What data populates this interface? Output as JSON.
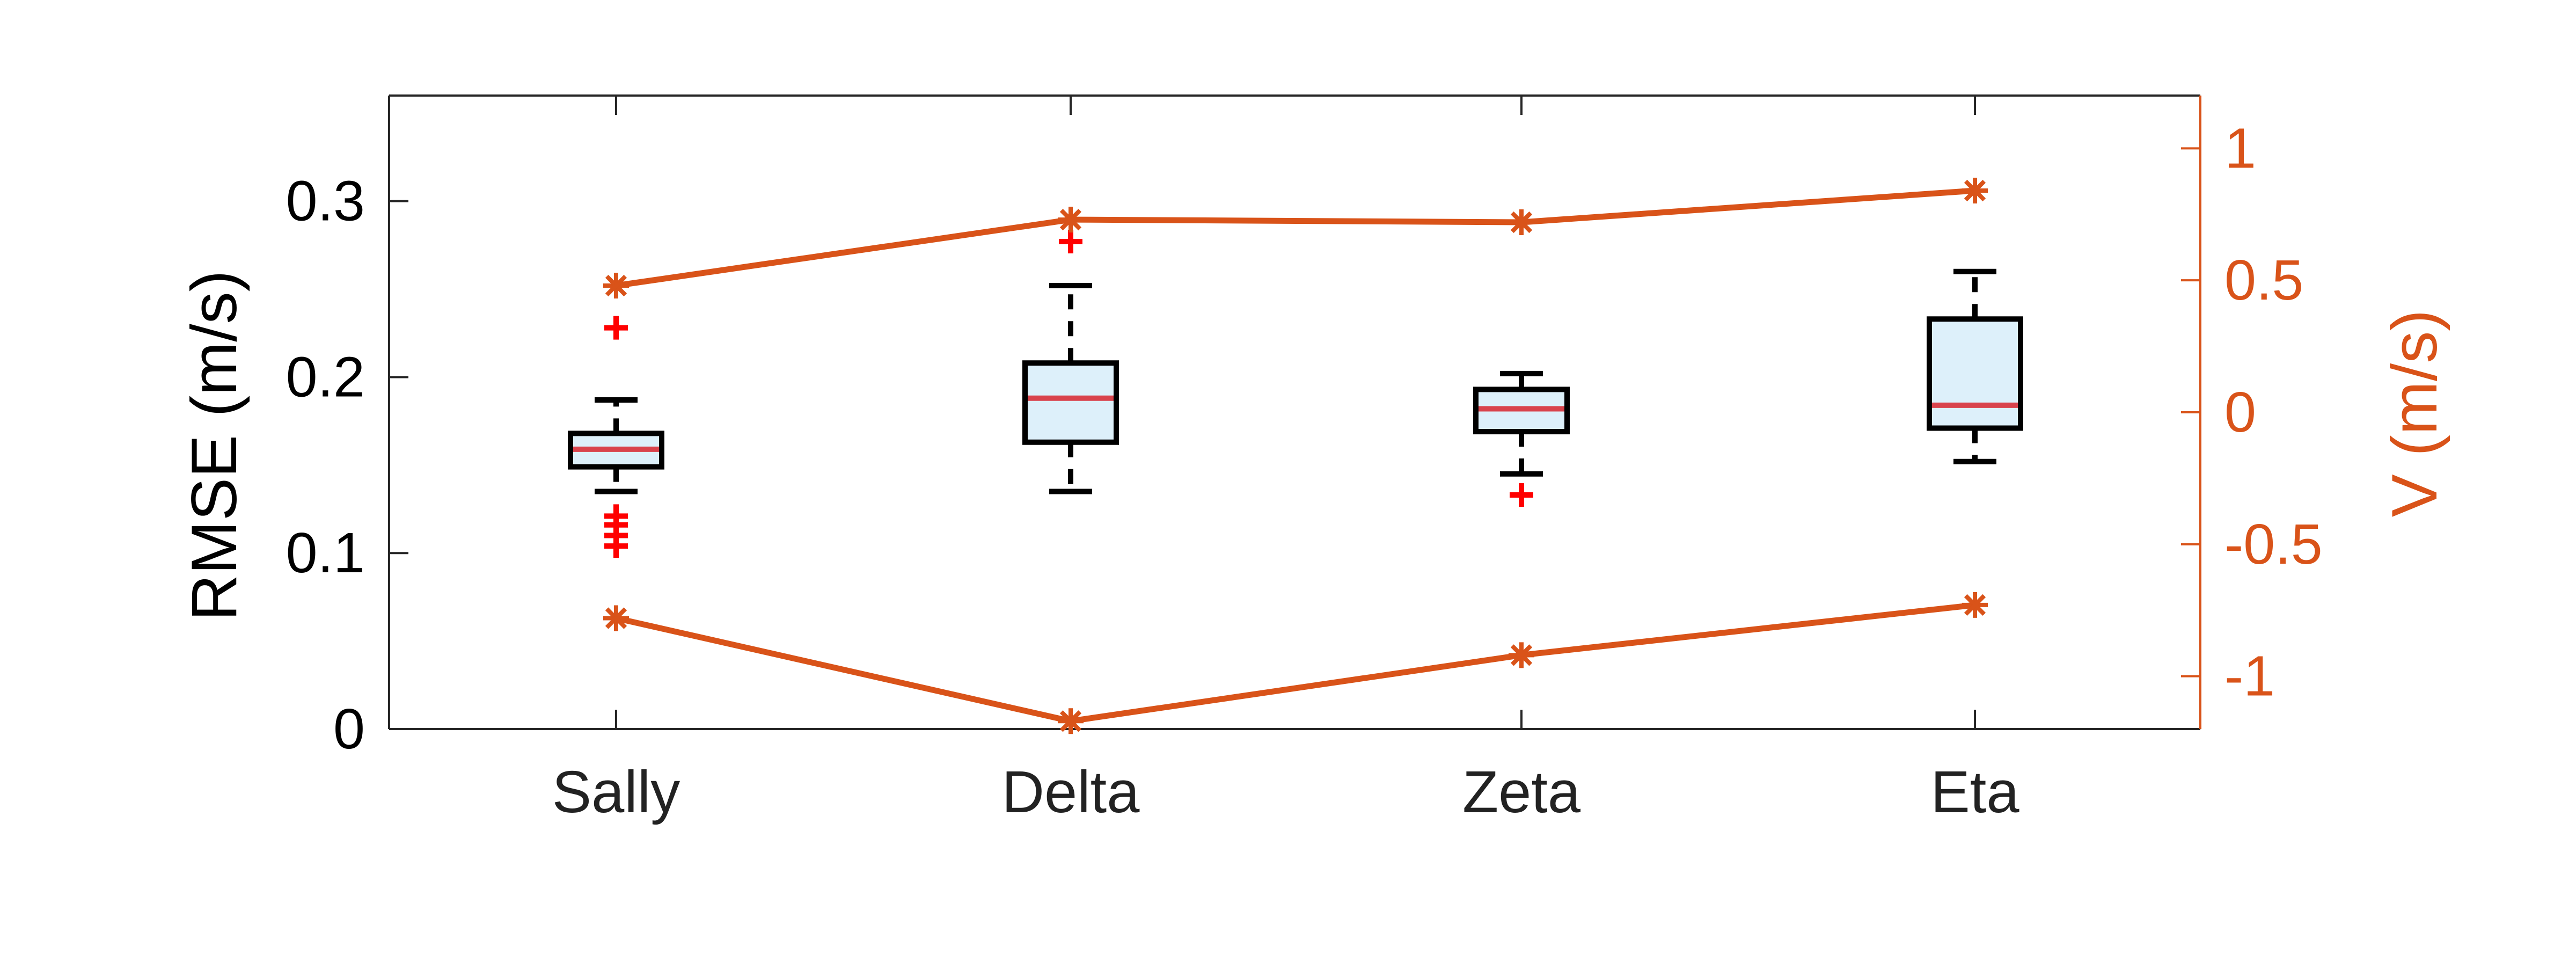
{
  "chart_data": {
    "type": "box",
    "categories": [
      "Sally",
      "Delta",
      "Zeta",
      "Eta"
    ],
    "left_axis": {
      "label": "RMSE (m/s)",
      "ylim": [
        0,
        0.36
      ],
      "ticks": [
        0,
        0.1,
        0.2,
        0.3
      ],
      "tick_labels": [
        "0",
        "0.1",
        "0.2",
        "0.3"
      ],
      "color": "#000000"
    },
    "right_axis": {
      "label": "V (m/s)",
      "ylim": [
        -1.2,
        1.2
      ],
      "ticks": [
        -1,
        -0.5,
        0,
        0.5,
        1
      ],
      "tick_labels": [
        "-1",
        "-0.5",
        "0",
        "0.5",
        "1"
      ],
      "color": "#D95319"
    },
    "boxes": [
      {
        "category": "Sally",
        "whisker_low": 0.135,
        "q1": 0.149,
        "median": 0.159,
        "q3": 0.168,
        "whisker_high": 0.187,
        "outliers": [
          0.228,
          0.121,
          0.116,
          0.11,
          0.104
        ]
      },
      {
        "category": "Delta",
        "whisker_low": 0.135,
        "q1": 0.163,
        "median": 0.188,
        "q3": 0.208,
        "whisker_high": 0.252,
        "outliers": [
          0.277
        ]
      },
      {
        "category": "Zeta",
        "whisker_low": 0.145,
        "q1": 0.169,
        "median": 0.182,
        "q3": 0.193,
        "whisker_high": 0.202,
        "outliers": [
          0.133
        ]
      },
      {
        "category": "Eta",
        "whisker_low": 0.152,
        "q1": 0.171,
        "median": 0.184,
        "q3": 0.233,
        "whisker_high": 0.26,
        "outliers": []
      }
    ],
    "series": [
      {
        "values": [
          0.48,
          0.73,
          0.72,
          0.84
        ],
        "axis": "right",
        "marker": "asterisk",
        "color": "#D95319"
      },
      {
        "values": [
          -0.78,
          -1.17,
          -0.92,
          -0.73
        ],
        "axis": "right",
        "marker": "asterisk",
        "color": "#D95319"
      }
    ],
    "colors": {
      "box_fill": "#DDF0FA",
      "box_edge": "#000000",
      "median": "#D9434C",
      "outlier": "#FF0000",
      "line": "#D95319"
    },
    "grid": false,
    "legend": "none"
  }
}
